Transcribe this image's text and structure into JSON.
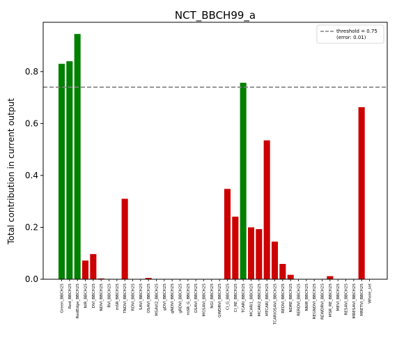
{
  "chart_data": {
    "type": "bar",
    "title": "NCT_BBCH99_a",
    "xlabel": "",
    "ylabel": "Total contribution in current output",
    "ylim": [
      0,
      0.99
    ],
    "yticks": [
      "0.0",
      "0.2",
      "0.4",
      "0.6",
      "0.8"
    ],
    "ytick_values": [
      0,
      0.2,
      0.4,
      0.6,
      0.8
    ],
    "grid": false,
    "legend_position": "top-right",
    "threshold": {
      "value": 0.74,
      "label": "threshold = 0.75",
      "sublabel": "(error: 0.01)",
      "color": "#808080"
    },
    "colors": {
      "above": "#008000",
      "below": "#cc0000"
    },
    "categories": [
      "Green_BBCH25",
      "Red_BBCH25",
      "RedEdge_BBCH25",
      "NIR_BBCH25",
      "DVI_BBCH25",
      "NDVI_BBCH25",
      "RVI_BBCH25",
      "mSR_BBCH25",
      "TNDVI_BBCH25",
      "RDVI_BBCH25",
      "SAVI_BBCH25",
      "OSAVI_BBCH25",
      "MSAVI2_BBCH25",
      "gDVI_BBCH25",
      "gNDVI_BBCH25",
      "gRDVI_BBCH25",
      "mSR_G_BBCH25",
      "GSAVI_BBCH25",
      "MGSAVI_BBCH25",
      "NGI_BBCH25",
      "GWDRVI_BBCH25",
      "CI_G_BBCH25",
      "CI_RE_BBCH25",
      "TCARI_BBCH25",
      "MCARI1_BBCH25",
      "MCARI2_BBCH25",
      "MTCARI_BBCH25",
      "TCARIOSAVI_BBCH25",
      "REDVI_BBCH25",
      "NDRE_BBCH25",
      "RERDVI_BBCH25",
      "NNIR_BBCH25",
      "REGNDVI_BBCH25",
      "REWDRVI_BBCH25",
      "MSR_RE_BBCH25",
      "MEVI_BBCH25",
      "RESAVI_BBCH25",
      "MRESAVI_BBCH25",
      "MRETVI_BBCH25",
      "Whole_set"
    ],
    "values": [
      0.83,
      0.84,
      0.945,
      0.072,
      0.097,
      0.003,
      0.0,
      0.0,
      0.31,
      0.0,
      0.0,
      0.005,
      0.0,
      0.0,
      0.0,
      0.0,
      0.0,
      0.0,
      0.0,
      0.0,
      0.0,
      0.348,
      0.241,
      0.757,
      0.2,
      0.193,
      0.535,
      0.145,
      0.059,
      0.017,
      0.0,
      0.0,
      0.0,
      0.0,
      0.012,
      0.0,
      0.0,
      0.0,
      0.663,
      0.0
    ],
    "above_threshold": [
      true,
      true,
      true,
      false,
      false,
      false,
      false,
      false,
      false,
      false,
      false,
      false,
      false,
      false,
      false,
      false,
      false,
      false,
      false,
      false,
      false,
      false,
      false,
      true,
      false,
      false,
      false,
      false,
      false,
      false,
      false,
      false,
      false,
      false,
      false,
      false,
      false,
      false,
      false,
      false
    ]
  }
}
